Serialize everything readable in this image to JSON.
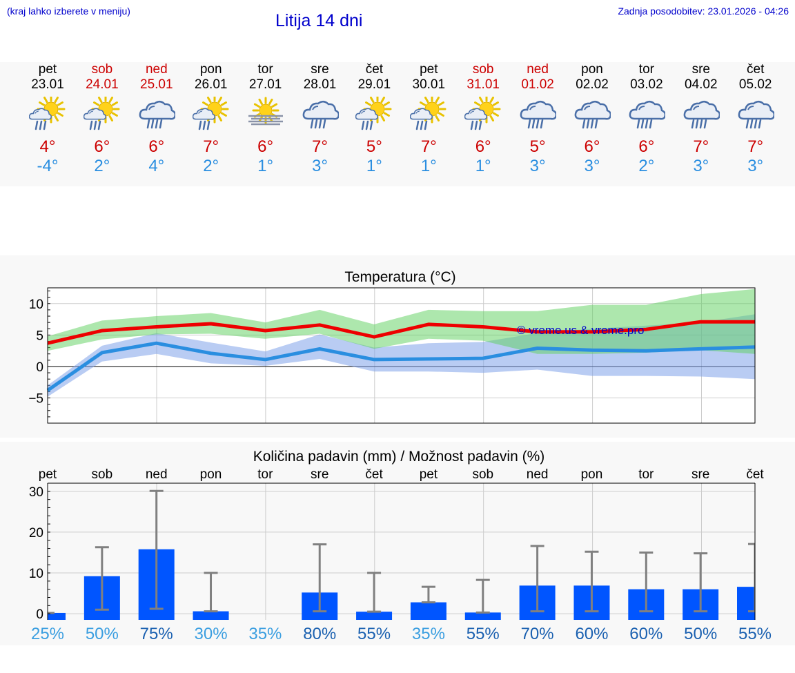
{
  "header": {
    "hint": "(kraj lahko izberete v meniju)",
    "title": "Litija 14 dni",
    "updated": "Zadnja posodobitev: 23.01.2026 - 04:26"
  },
  "colors": {
    "max_temp": "#cc0000",
    "min_temp": "#2a8ee0",
    "max_band": "#a8e6a8",
    "min_band": "#a8c4f0",
    "precip_bar": "#0055ff",
    "link": "#0000cc"
  },
  "days": [
    {
      "dow": "pet",
      "date": "23.01",
      "weekend": false,
      "icon": "sun-cloud-rain-icon",
      "tmax": "4°",
      "tmin": "-4°"
    },
    {
      "dow": "sob",
      "date": "24.01",
      "weekend": true,
      "icon": "sun-cloud-rain-icon",
      "tmax": "6°",
      "tmin": "2°"
    },
    {
      "dow": "ned",
      "date": "25.01",
      "weekend": true,
      "icon": "cloud-rain-icon",
      "tmax": "6°",
      "tmin": "4°"
    },
    {
      "dow": "pon",
      "date": "26.01",
      "weekend": false,
      "icon": "sun-cloud-rain-icon",
      "tmax": "7°",
      "tmin": "2°"
    },
    {
      "dow": "tor",
      "date": "27.01",
      "weekend": false,
      "icon": "sun-fog-icon",
      "tmax": "6°",
      "tmin": "1°"
    },
    {
      "dow": "sre",
      "date": "28.01",
      "weekend": false,
      "icon": "cloud-rain-icon",
      "tmax": "7°",
      "tmin": "3°"
    },
    {
      "dow": "čet",
      "date": "29.01",
      "weekend": false,
      "icon": "sun-cloud-rain-icon",
      "tmax": "5°",
      "tmin": "1°"
    },
    {
      "dow": "pet",
      "date": "30.01",
      "weekend": false,
      "icon": "sun-cloud-rain-icon",
      "tmax": "7°",
      "tmin": "1°"
    },
    {
      "dow": "sob",
      "date": "31.01",
      "weekend": true,
      "icon": "sun-cloud-rain-icon",
      "tmax": "6°",
      "tmin": "1°"
    },
    {
      "dow": "ned",
      "date": "01.02",
      "weekend": true,
      "icon": "cloud-rain-icon",
      "tmax": "5°",
      "tmin": "3°"
    },
    {
      "dow": "pon",
      "date": "02.02",
      "weekend": false,
      "icon": "cloud-rain-icon",
      "tmax": "6°",
      "tmin": "3°"
    },
    {
      "dow": "tor",
      "date": "03.02",
      "weekend": false,
      "icon": "cloud-rain-icon",
      "tmax": "6°",
      "tmin": "2°"
    },
    {
      "dow": "sre",
      "date": "04.02",
      "weekend": false,
      "icon": "cloud-rain-icon",
      "tmax": "7°",
      "tmin": "3°"
    },
    {
      "dow": "čet",
      "date": "05.02",
      "weekend": false,
      "icon": "cloud-rain-icon",
      "tmax": "7°",
      "tmin": "3°"
    }
  ],
  "chart_data": [
    {
      "type": "line",
      "title": "Temperatura (°C)",
      "watermark": "© vreme.us & vreme.pro",
      "x": [
        0,
        1,
        2,
        3,
        4,
        5,
        6,
        7,
        8,
        9,
        10,
        11,
        12,
        13
      ],
      "ylim": [
        -9,
        12.5
      ],
      "yticks": [
        10,
        5,
        0,
        -5
      ],
      "ytick_labels": [
        "10",
        "5",
        "0",
        "−5"
      ],
      "grid": true,
      "series": [
        {
          "name": "max",
          "values": [
            3.7,
            5.7,
            6.3,
            6.8,
            5.7,
            6.6,
            4.7,
            6.7,
            6.3,
            5.5,
            5.5,
            5.9,
            7.1,
            7.1
          ],
          "band_low": [
            2.5,
            4.3,
            5.1,
            5.2,
            4.4,
            5.2,
            2.8,
            4.4,
            4.1,
            2.0,
            2.0,
            2.2,
            2.6,
            2.0
          ],
          "band_high": [
            4.8,
            7.3,
            8.0,
            8.5,
            7.0,
            9.0,
            6.7,
            9.0,
            8.8,
            8.8,
            9.8,
            9.8,
            11.5,
            12.3
          ]
        },
        {
          "name": "min",
          "values": [
            -3.8,
            2.2,
            3.7,
            2.1,
            1.1,
            2.8,
            1.1,
            1.2,
            1.3,
            2.9,
            2.6,
            2.5,
            2.8,
            3.1
          ],
          "band_low": [
            -4.8,
            0.8,
            2.0,
            0.5,
            0.1,
            1.2,
            -0.8,
            -0.8,
            -1.0,
            -0.5,
            -1.5,
            -1.5,
            -1.6,
            -2.0
          ],
          "band_high": [
            -3.0,
            3.3,
            5.3,
            3.8,
            2.4,
            5.1,
            3.0,
            3.7,
            3.9,
            5.3,
            6.0,
            6.5,
            7.0,
            8.3
          ]
        }
      ]
    },
    {
      "type": "bar",
      "title": "Količina padavin (mm) / Možnost padavin (%)",
      "categories": [
        "pet",
        "sob",
        "ned",
        "pon",
        "tor",
        "sre",
        "čet",
        "pet",
        "sob",
        "ned",
        "pon",
        "tor",
        "sre",
        "čet"
      ],
      "values": [
        0.2,
        9.2,
        15.8,
        0.6,
        0.0,
        5.2,
        0.5,
        2.8,
        0.3,
        6.9,
        6.9,
        6.0,
        6.0,
        6.6
      ],
      "err_low": [
        0.2,
        1.0,
        1.2,
        0.6,
        0.0,
        0.6,
        0.5,
        2.8,
        0.3,
        0.6,
        0.6,
        0.6,
        0.6,
        0.6
      ],
      "err_high": [
        0.2,
        16.3,
        30.1,
        10.0,
        0.0,
        17.0,
        10.0,
        6.6,
        8.3,
        16.6,
        15.2,
        15.0,
        14.8,
        17.1
      ],
      "probability": [
        "25%",
        "50%",
        "75%",
        "30%",
        "35%",
        "80%",
        "55%",
        "35%",
        "55%",
        "70%",
        "60%",
        "60%",
        "50%",
        "55%"
      ],
      "prob_dark": [
        false,
        false,
        true,
        false,
        false,
        true,
        true,
        false,
        true,
        true,
        true,
        true,
        true,
        true
      ],
      "ylim": [
        -1.5,
        32
      ],
      "yticks": [
        30,
        20,
        10,
        0
      ],
      "ytick_labels": [
        "30",
        "20",
        "10",
        "0"
      ],
      "ylabel": "",
      "xlabel": "",
      "grid": true
    }
  ]
}
